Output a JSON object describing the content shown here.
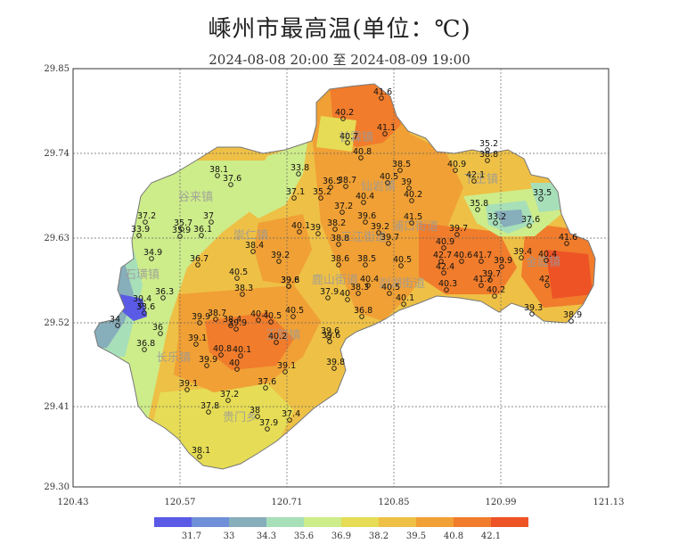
{
  "title": "嵊州市最高温(单位：℃)",
  "subtitle": "2024-08-08  20:00 至 2024-08-09  19:00",
  "axes": {
    "y_ticks": [
      "29.85",
      "29.74",
      "29.63",
      "29.52",
      "29.41",
      "29.30"
    ],
    "x_ticks": [
      "120.43",
      "120.57",
      "120.71",
      "120.85",
      "120.99",
      "121.13"
    ]
  },
  "legend": {
    "colors": [
      "#5a5ae6",
      "#6f8fd8",
      "#87aebb",
      "#a7dfb9",
      "#cdec8a",
      "#e6dc55",
      "#eec046",
      "#f0a035",
      "#f07c2c",
      "#ee5326"
    ],
    "labels": [
      "31.7",
      "33",
      "34.3",
      "35.6",
      "36.9",
      "38.2",
      "39.5",
      "40.8",
      "42.1"
    ]
  },
  "towns": [
    "甘霖镇",
    "仙岩镇",
    "谷来镇",
    "崇仁镇",
    "三江街道",
    "浦口街道",
    "石璜镇",
    "鹿山街道",
    "剡湖街道",
    "长乐镇",
    "王院镇",
    "贵门乡",
    "金庭镇",
    "下王镇"
  ],
  "stations": [
    "41.6",
    "40.2",
    "41.1",
    "40.7",
    "40.8",
    "35.2",
    "38.8",
    "33.8",
    "38.5",
    "40.9",
    "42.1",
    "38.1",
    "37.6",
    "36.5",
    "38.7",
    "40.5",
    "39",
    "33.5",
    "37.1",
    "35.2",
    "40.4",
    "40.2",
    "35.8",
    "37.2",
    "37",
    "37.2",
    "39.6",
    "41.5",
    "33.2",
    "37.6",
    "35.7",
    "38.2",
    "33.9",
    "35.9",
    "36.1",
    "40.1",
    "39",
    "39.2",
    "39.7",
    "39.7",
    "41.6",
    "38.8",
    "38.4",
    "39.4",
    "40.4",
    "34.9",
    "39.2",
    "38.6",
    "38.5",
    "40.9",
    "42.7",
    "40.6",
    "41.7",
    "39.9",
    "36.7",
    "42.4",
    "40.5",
    "39.8",
    "40.5",
    "40.4",
    "39.7",
    "42",
    "36.3",
    "39.6",
    "38.3",
    "37.9",
    "40",
    "40.5",
    "40.1",
    "40.3",
    "41.7",
    "40.2",
    "30.4",
    "33.6",
    "39.9",
    "38.7",
    "38.4",
    "39.9",
    "40.1",
    "40.5",
    "40.5",
    "38.3",
    "39.3",
    "38.9",
    "34",
    "36",
    "39.1",
    "40.8",
    "40.1",
    "40.2",
    "39.6",
    "36.8",
    "36.8",
    "39.9",
    "40",
    "39.1",
    "39.8",
    "39.6",
    "39.1",
    "37.2",
    "37.6",
    "37.8",
    "38",
    "37.4",
    "37.9",
    "38.1"
  ]
}
